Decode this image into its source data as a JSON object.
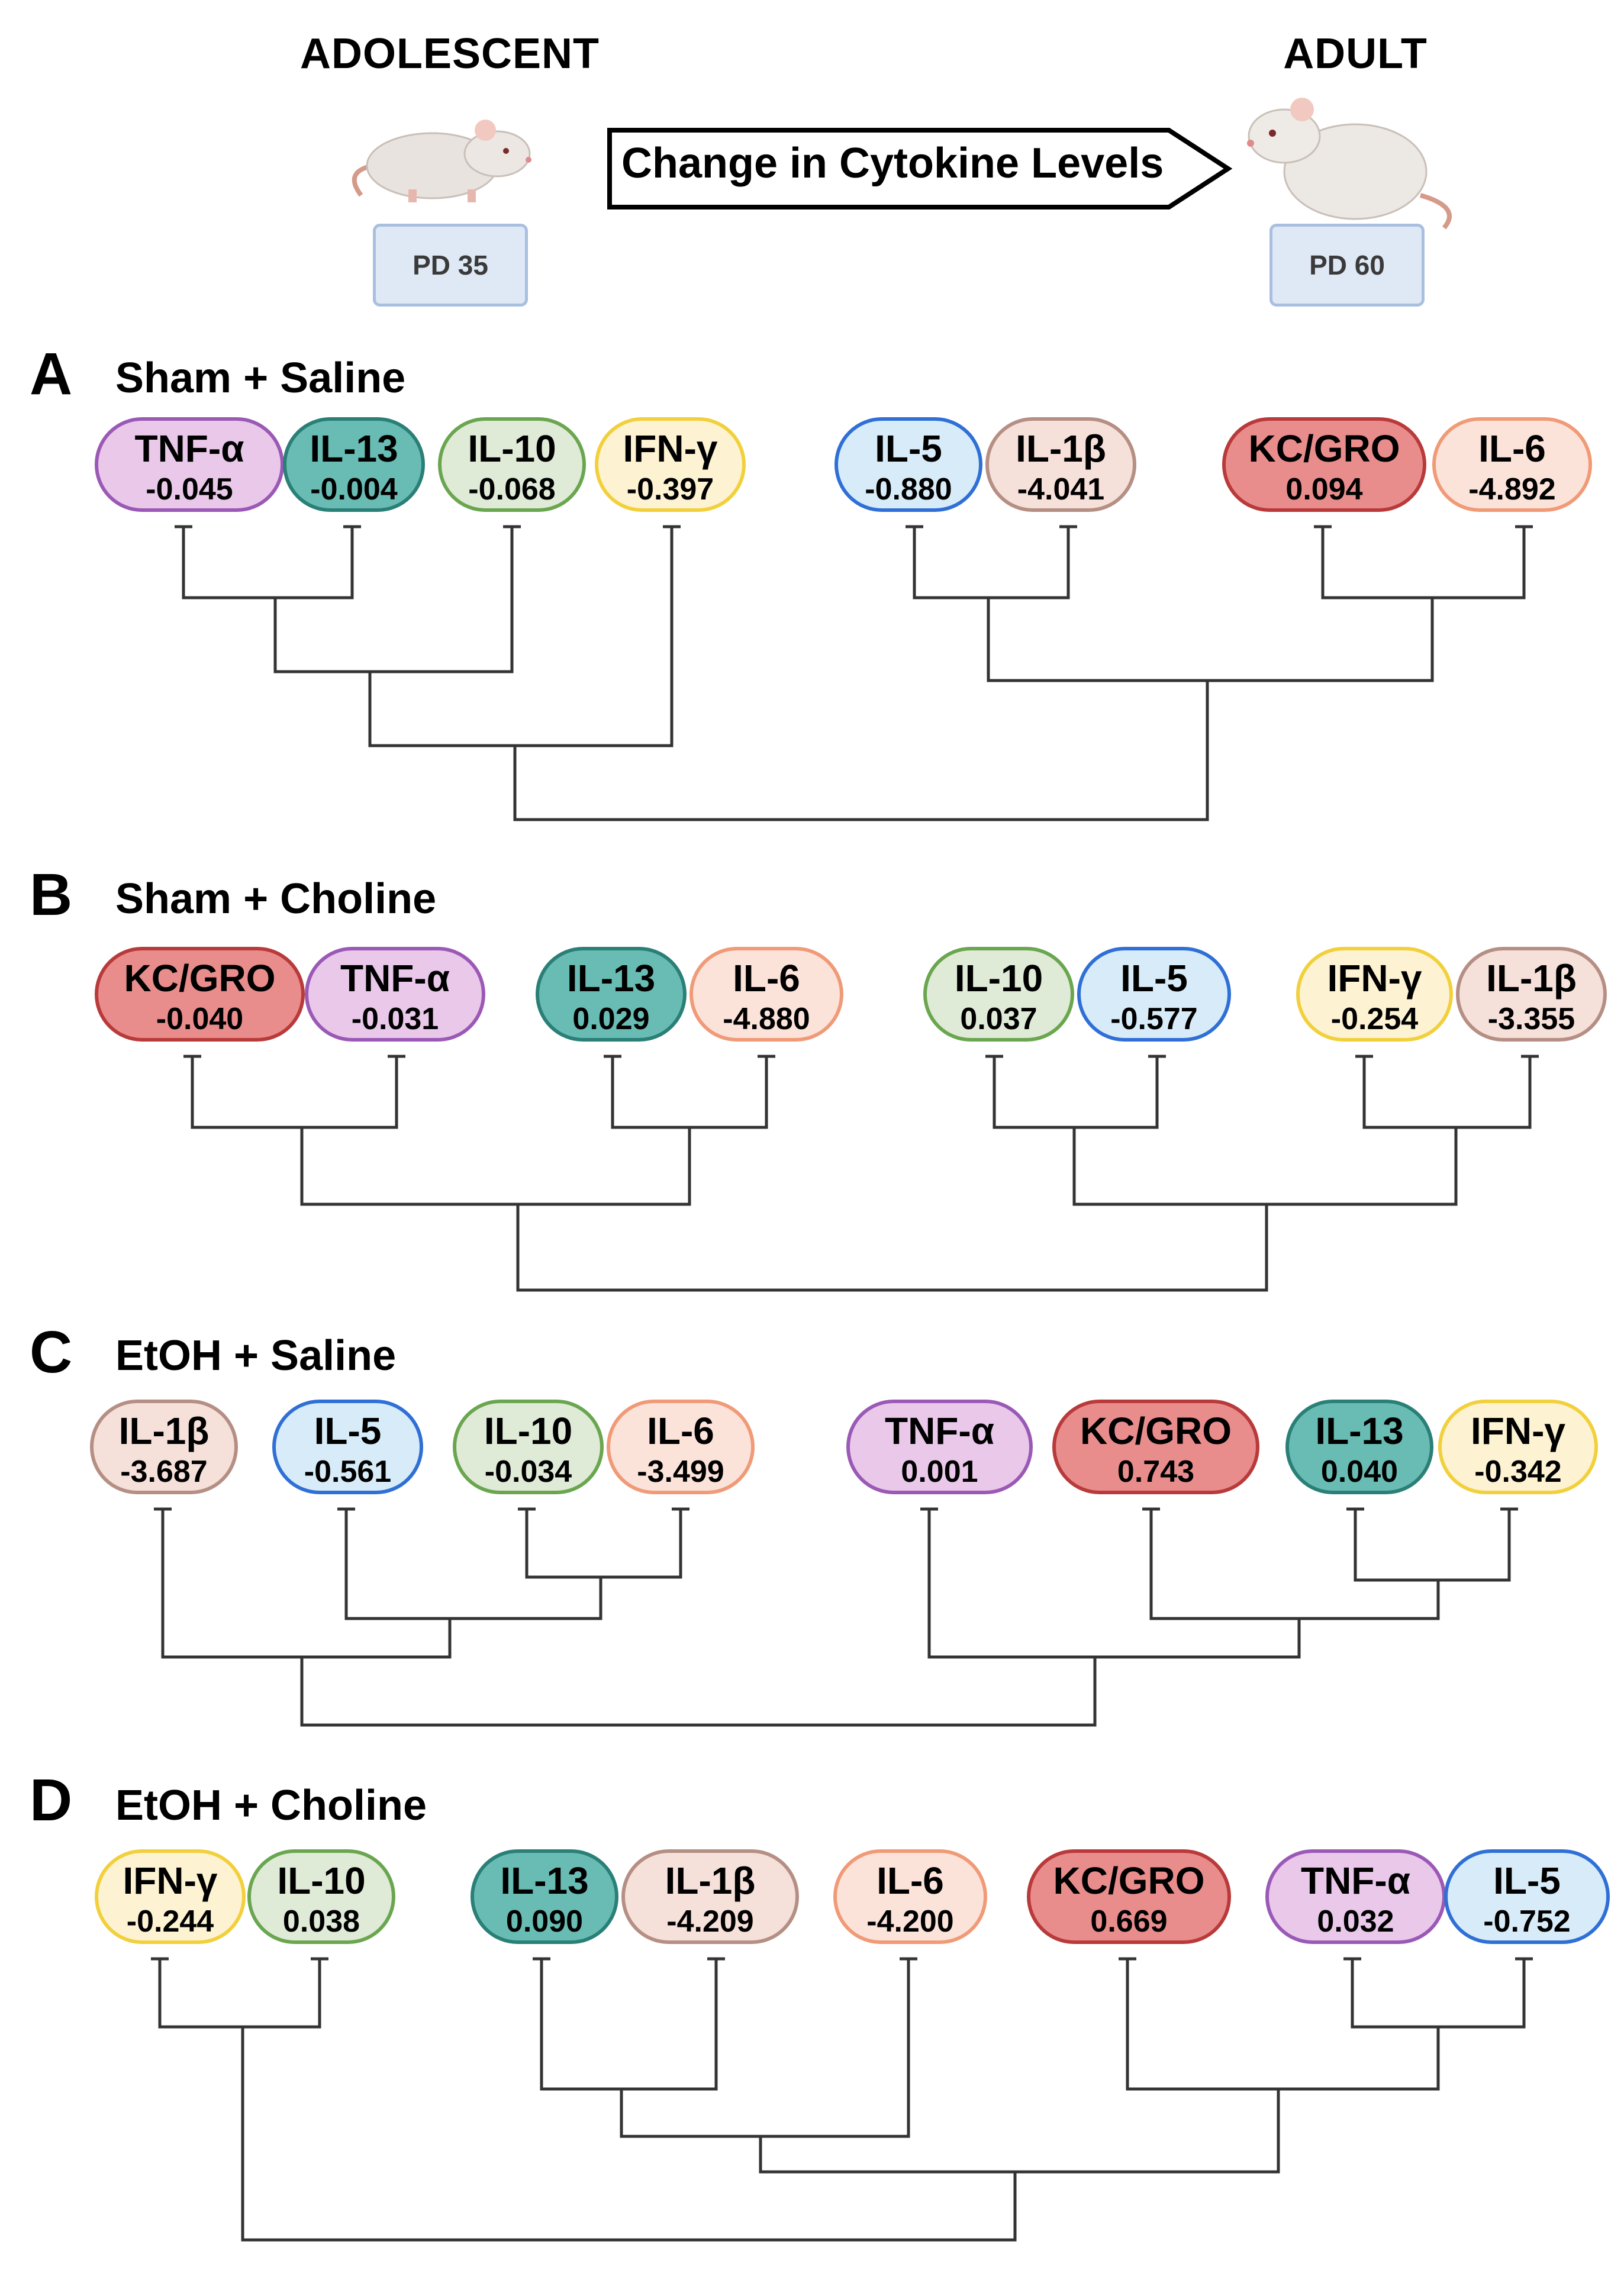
{
  "header": {
    "left_label": "ADOLESCENT",
    "right_label": "ADULT",
    "left_box": "PD 35",
    "right_box": "PD 60",
    "arrow_label": "Change in Cytokine Levels"
  },
  "colors": {
    "TNF-α": {
      "fill": "#e9c8ea",
      "stroke": "#9b59b6"
    },
    "IL-13": {
      "fill": "#68bcb3",
      "stroke": "#2a7f77"
    },
    "IL-10": {
      "fill": "#dfead7",
      "stroke": "#6aa64f"
    },
    "IFN-γ": {
      "fill": "#fdf3d3",
      "stroke": "#f2d03c"
    },
    "IL-5": {
      "fill": "#d7ecf8",
      "stroke": "#2f6fd6"
    },
    "IL-1β": {
      "fill": "#f6e0da",
      "stroke": "#b58f84"
    },
    "KC/GRO": {
      "fill": "#e98c8c",
      "stroke": "#b93a3a"
    },
    "IL-6": {
      "fill": "#fbe3da",
      "stroke": "#f09a77"
    }
  },
  "panels": [
    {
      "letter": "A",
      "title": "Sham + Saline",
      "cytokines": [
        {
          "name": "TNF-α",
          "value": "-0.045"
        },
        {
          "name": "IL-13",
          "value": "-0.004"
        },
        {
          "name": "IL-10",
          "value": "-0.068"
        },
        {
          "name": "IFN-γ",
          "value": "-0.397"
        },
        {
          "name": "IL-5",
          "value": "-0.880"
        },
        {
          "name": "IL-1β",
          "value": "-4.041"
        },
        {
          "name": "KC/GRO",
          "value": "0.094"
        },
        {
          "name": "IL-6",
          "value": "-4.892"
        }
      ]
    },
    {
      "letter": "B",
      "title": "Sham + Choline",
      "cytokines": [
        {
          "name": "KC/GRO",
          "value": "-0.040"
        },
        {
          "name": "TNF-α",
          "value": "-0.031"
        },
        {
          "name": "IL-13",
          "value": "0.029"
        },
        {
          "name": "IL-6",
          "value": "-4.880"
        },
        {
          "name": "IL-10",
          "value": "0.037"
        },
        {
          "name": "IL-5",
          "value": "-0.577"
        },
        {
          "name": "IFN-γ",
          "value": "-0.254"
        },
        {
          "name": "IL-1β",
          "value": "-3.355"
        }
      ]
    },
    {
      "letter": "C",
      "title": "EtOH + Saline",
      "cytokines": [
        {
          "name": "IL-1β",
          "value": "-3.687"
        },
        {
          "name": "IL-5",
          "value": "-0.561"
        },
        {
          "name": "IL-10",
          "value": "-0.034"
        },
        {
          "name": "IL-6",
          "value": "-3.499"
        },
        {
          "name": "TNF-α",
          "value": "0.001"
        },
        {
          "name": "KC/GRO",
          "value": "0.743"
        },
        {
          "name": "IL-13",
          "value": "0.040"
        },
        {
          "name": "IFN-γ",
          "value": "-0.342"
        }
      ]
    },
    {
      "letter": "D",
      "title": "EtOH + Choline",
      "cytokines": [
        {
          "name": "IFN-γ",
          "value": "-0.244"
        },
        {
          "name": "IL-10",
          "value": "0.038"
        },
        {
          "name": "IL-13",
          "value": "0.090"
        },
        {
          "name": "IL-1β",
          "value": "-4.209"
        },
        {
          "name": "IL-6",
          "value": "-4.200"
        },
        {
          "name": "KC/GRO",
          "value": "0.669"
        },
        {
          "name": "TNF-α",
          "value": "0.032"
        },
        {
          "name": "IL-5",
          "value": "-0.752"
        }
      ]
    }
  ]
}
